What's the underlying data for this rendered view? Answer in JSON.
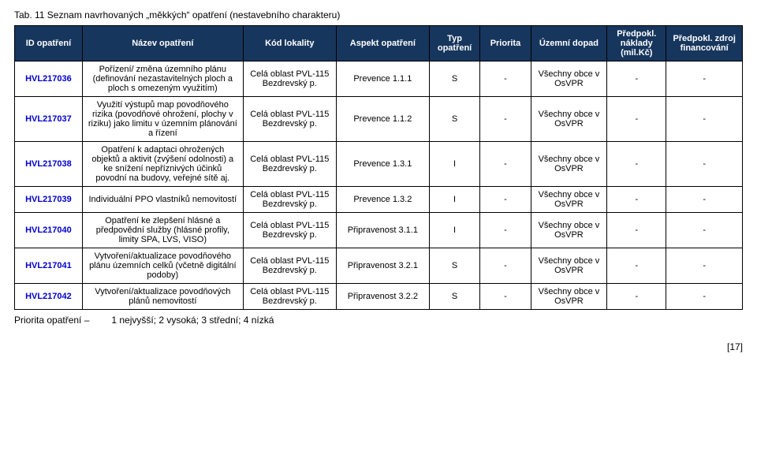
{
  "caption": "Tab. 11   Seznam navrhovaných „měkkých“ opatření (nestavebního charakteru)",
  "headers": [
    "ID opatření",
    "Název opatření",
    "Kód lokality",
    "Aspekt opatření",
    "Typ opatření",
    "Priorita",
    "Územní dopad",
    "Předpokl. náklady (mil.Kč)",
    "Předpokl. zdroj financování"
  ],
  "rows": [
    {
      "id": "HVL217036",
      "name": "Pořízení/ změna územního plánu (definování nezastavitelných ploch a ploch s omezeným využitím)",
      "loc": "Celá oblast PVL-115 Bezdrevský p.",
      "aspect": "Prevence 1.1.1",
      "type": "S",
      "prio": "-",
      "impact": "Všechny obce v OsVPR",
      "cost": "-",
      "src": "-"
    },
    {
      "id": "HVL217037",
      "name": "Využití výstupů map povodňového rizika (povodňové ohrožení, plochy v riziku) jako limitu v územním plánování a řízení",
      "loc": "Celá oblast PVL-115 Bezdrevský p.",
      "aspect": "Prevence 1.1.2",
      "type": "S",
      "prio": "-",
      "impact": "Všechny obce v OsVPR",
      "cost": "-",
      "src": "-"
    },
    {
      "id": "HVL217038",
      "name": "Opatření k adaptaci ohrožených objektů a aktivit (zvýšení odolnosti) a ke snížení nepříznivých účinků povodní na budovy, veřejné sítě aj.",
      "loc": "Celá oblast PVL-115 Bezdrevský p.",
      "aspect": "Prevence 1.3.1",
      "type": "I",
      "prio": "-",
      "impact": "Všechny obce v OsVPR",
      "cost": "-",
      "src": "-"
    },
    {
      "id": "HVL217039",
      "name": "Individuální PPO vlastníků nemovitostí",
      "loc": "Celá oblast PVL-115 Bezdrevský p.",
      "aspect": "Prevence 1.3.2",
      "type": "I",
      "prio": "-",
      "impact": "Všechny obce v OsVPR",
      "cost": "-",
      "src": "-"
    },
    {
      "id": "HVL217040",
      "name": "Opatření ke zlepšení hlásné a předpovědní služby (hlásné profily, limity SPA, LVS, VISO)",
      "loc": "Celá oblast PVL-115 Bezdrevský p.",
      "aspect": "Připravenost 3.1.1",
      "type": "I",
      "prio": "-",
      "impact": "Všechny obce v OsVPR",
      "cost": "-",
      "src": "-"
    },
    {
      "id": "HVL217041",
      "name": "Vytvoření/aktualizace povodňového plánu územních celků (včetně digitální podoby)",
      "loc": "Celá oblast PVL-115 Bezdrevský p.",
      "aspect": "Připravenost 3.2.1",
      "type": "S",
      "prio": "-",
      "impact": "Všechny obce v OsVPR",
      "cost": "-",
      "src": "-"
    },
    {
      "id": "HVL217042",
      "name": "Vytvoření/aktualizace povodňových plánů nemovitostí",
      "loc": "Celá oblast PVL-115 Bezdrevský p.",
      "aspect": "Připravenost 3.2.2",
      "type": "S",
      "prio": "-",
      "impact": "Všechny obce v OsVPR",
      "cost": "-",
      "src": "-"
    }
  ],
  "footnote_label": "Priorita opatření –",
  "footnote_text": "1 nejvyšší; 2 vysoká; 3 střední; 4 nízká",
  "page_number": "[17]"
}
